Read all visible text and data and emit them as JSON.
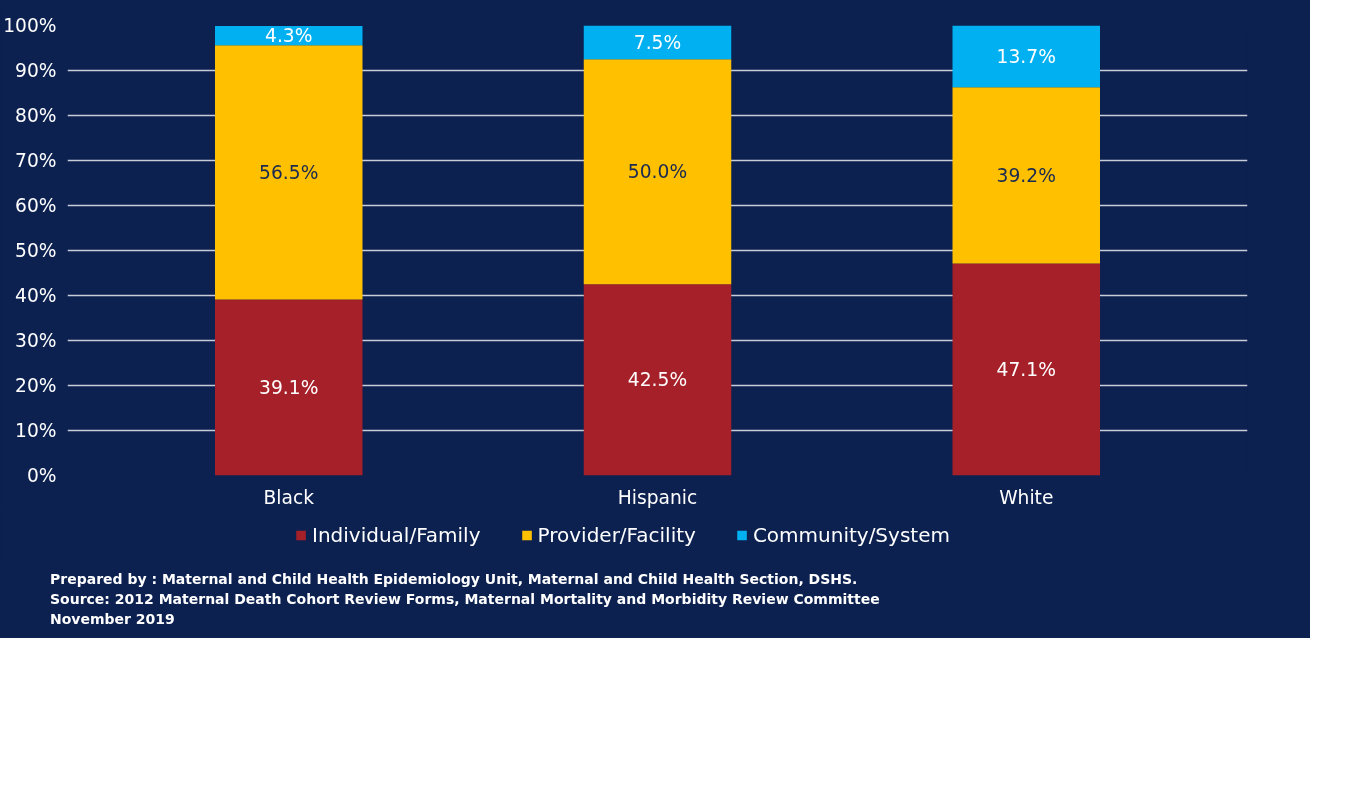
{
  "chart_data": {
    "type": "bar",
    "stacked": true,
    "categories": [
      "Black",
      "Hispanic",
      "White"
    ],
    "series": [
      {
        "name": "Individual/Family",
        "color": "#a6202a",
        "values": [
          39.1,
          42.5,
          47.1
        ],
        "value_labels": [
          "39.1%",
          "42.5%",
          "47.1%"
        ]
      },
      {
        "name": "Provider/Facility",
        "color": "#ffc000",
        "values": [
          56.5,
          50.0,
          39.2
        ],
        "value_labels": [
          "56.5%",
          "50.0%",
          "39.2%"
        ]
      },
      {
        "name": "Community/System",
        "color": "#00b0f0",
        "values": [
          4.3,
          7.5,
          13.7
        ],
        "value_labels": [
          "4.3%",
          "7.5%",
          "13.7%"
        ]
      }
    ],
    "ylim": [
      0,
      100
    ],
    "yticks": [
      {
        "value": 0,
        "label": "0%"
      },
      {
        "value": 10,
        "label": "10%"
      },
      {
        "value": 20,
        "label": "20%"
      },
      {
        "value": 30,
        "label": "30%"
      },
      {
        "value": 40,
        "label": "40%"
      },
      {
        "value": 50,
        "label": "50%"
      },
      {
        "value": 60,
        "label": "60%"
      },
      {
        "value": 70,
        "label": "70%"
      },
      {
        "value": 80,
        "label": "80%"
      },
      {
        "value": 90,
        "label": "90%"
      },
      {
        "value": 100,
        "label": "100%"
      }
    ],
    "grid": "y",
    "legend": "bottom",
    "annotations": [
      "Prepared by : Maternal and Child Health Epidemiology Unit, Maternal and Child Health Section, DSHS.",
      "Source: 2012 Maternal Death Cohort Review Forms, Maternal Mortality and Morbidity Review Committee",
      "November 2019"
    ]
  }
}
